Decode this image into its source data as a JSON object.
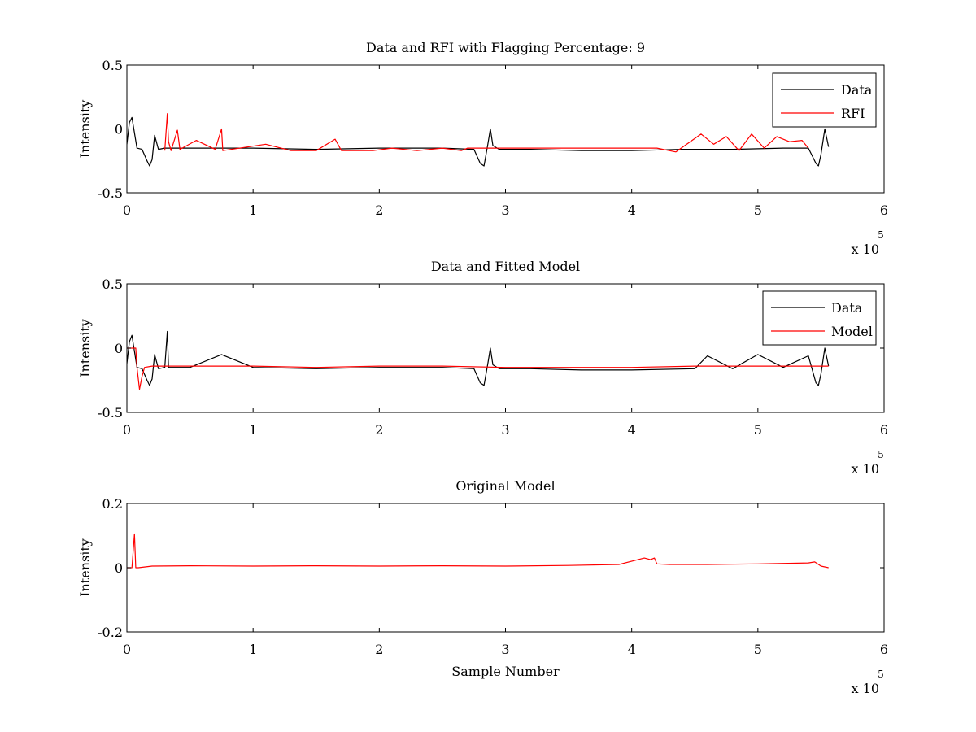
{
  "figure": {
    "background": "#ffffff"
  },
  "chart_data": [
    {
      "type": "line",
      "title": "Data and RFI with Flagging Percentage: 9",
      "xlabel": "",
      "ylabel": "Intensity",
      "xlim": [
        0,
        6
      ],
      "ylim": [
        -0.5,
        0.5
      ],
      "xticks": [
        "0",
        "1",
        "2",
        "3",
        "4",
        "5",
        "6"
      ],
      "xtick_values": [
        0,
        1,
        2,
        3,
        4,
        5,
        6
      ],
      "yticks": [
        "-0.5",
        "0",
        "0.5"
      ],
      "ytick_values": [
        -0.5,
        0,
        0.5
      ],
      "x_multiplier": {
        "base": "x 10",
        "exponent": "5"
      },
      "legend": {
        "placement": "top-right",
        "entries": [
          {
            "label": "Data",
            "color": "#000000"
          },
          {
            "label": "RFI",
            "color": "#ff0000"
          }
        ]
      },
      "series": [
        {
          "name": "Data",
          "color": "#000000",
          "x": [
            0,
            0.02,
            0.04,
            0.08,
            0.12,
            0.16,
            0.18,
            0.2,
            0.22,
            0.25,
            0.3,
            0.5,
            1.0,
            1.5,
            2.0,
            2.5,
            2.75,
            2.8,
            2.83,
            2.86,
            2.88,
            2.9,
            2.95,
            3.2,
            3.6,
            4.0,
            4.4,
            4.8,
            5.2,
            5.4,
            5.46,
            5.48,
            5.5,
            5.53,
            5.56
          ],
          "y": [
            -0.12,
            0.05,
            0.09,
            -0.15,
            -0.16,
            -0.25,
            -0.29,
            -0.24,
            -0.05,
            -0.16,
            -0.15,
            -0.15,
            -0.15,
            -0.16,
            -0.15,
            -0.15,
            -0.16,
            -0.27,
            -0.29,
            -0.12,
            0.0,
            -0.13,
            -0.16,
            -0.16,
            -0.17,
            -0.17,
            -0.16,
            -0.16,
            -0.15,
            -0.15,
            -0.27,
            -0.29,
            -0.2,
            0.0,
            -0.14
          ]
        },
        {
          "name": "RFI",
          "color": "#ff0000",
          "x": [
            0.3,
            0.32,
            0.33,
            0.35,
            0.4,
            0.42,
            0.55,
            0.7,
            0.75,
            0.76,
            1.1,
            1.3,
            1.5,
            1.65,
            1.7,
            1.95,
            2.1,
            2.3,
            2.5,
            2.65,
            2.7,
            4.2,
            4.35,
            4.55,
            4.65,
            4.75,
            4.85,
            4.95,
            5.05,
            5.15,
            5.25,
            5.35,
            5.4
          ],
          "y": [
            -0.17,
            0.12,
            -0.1,
            -0.17,
            -0.01,
            -0.16,
            -0.09,
            -0.16,
            0.0,
            -0.17,
            -0.12,
            -0.17,
            -0.17,
            -0.08,
            -0.17,
            -0.17,
            -0.15,
            -0.17,
            -0.15,
            -0.17,
            -0.15,
            -0.15,
            -0.18,
            -0.04,
            -0.12,
            -0.06,
            -0.17,
            -0.04,
            -0.15,
            -0.06,
            -0.1,
            -0.09,
            -0.15
          ]
        }
      ]
    },
    {
      "type": "line",
      "title": "Data and Fitted Model",
      "xlabel": "",
      "ylabel": "Intensity",
      "xlim": [
        0,
        6
      ],
      "ylim": [
        -0.5,
        0.5
      ],
      "xticks": [
        "0",
        "1",
        "2",
        "3",
        "4",
        "5",
        "6"
      ],
      "xtick_values": [
        0,
        1,
        2,
        3,
        4,
        5,
        6
      ],
      "yticks": [
        "-0.5",
        "0",
        "0.5"
      ],
      "ytick_values": [
        -0.5,
        0,
        0.5
      ],
      "x_multiplier": {
        "base": "x 10",
        "exponent": "5"
      },
      "legend": {
        "placement": "top-right",
        "entries": [
          {
            "label": "Data",
            "color": "#000000"
          },
          {
            "label": "Model",
            "color": "#ff0000"
          }
        ]
      },
      "series": [
        {
          "name": "Data",
          "color": "#000000",
          "x": [
            0,
            0.02,
            0.04,
            0.08,
            0.12,
            0.16,
            0.18,
            0.2,
            0.22,
            0.25,
            0.3,
            0.32,
            0.33,
            0.5,
            0.75,
            1.0,
            1.5,
            2.0,
            2.5,
            2.75,
            2.8,
            2.83,
            2.86,
            2.88,
            2.9,
            2.95,
            3.2,
            3.6,
            4.0,
            4.5,
            4.6,
            4.8,
            5.0,
            5.2,
            5.4,
            5.46,
            5.48,
            5.5,
            5.53,
            5.56
          ],
          "y": [
            -0.12,
            0.05,
            0.1,
            -0.15,
            -0.16,
            -0.25,
            -0.29,
            -0.24,
            -0.05,
            -0.16,
            -0.15,
            0.13,
            -0.15,
            -0.15,
            -0.05,
            -0.15,
            -0.16,
            -0.15,
            -0.15,
            -0.16,
            -0.27,
            -0.29,
            -0.12,
            0.0,
            -0.13,
            -0.16,
            -0.16,
            -0.17,
            -0.17,
            -0.16,
            -0.06,
            -0.16,
            -0.05,
            -0.15,
            -0.06,
            -0.27,
            -0.29,
            -0.2,
            0.0,
            -0.14
          ]
        },
        {
          "name": "Model",
          "color": "#ff0000",
          "x": [
            0,
            0.02,
            0.05,
            0.07,
            0.08,
            0.1,
            0.12,
            0.14,
            0.2,
            0.5,
            1.0,
            1.5,
            2.0,
            2.5,
            3.0,
            3.5,
            4.0,
            4.5,
            5.0,
            5.5,
            5.56
          ],
          "y": [
            0.0,
            0.0,
            0.0,
            0.0,
            -0.15,
            -0.32,
            -0.22,
            -0.15,
            -0.14,
            -0.14,
            -0.14,
            -0.15,
            -0.14,
            -0.14,
            -0.15,
            -0.15,
            -0.15,
            -0.14,
            -0.14,
            -0.14,
            -0.14
          ]
        }
      ]
    },
    {
      "type": "line",
      "title": "Original Model",
      "xlabel": "Sample Number",
      "ylabel": "Intensity",
      "xlim": [
        0,
        6
      ],
      "ylim": [
        -0.2,
        0.2
      ],
      "xticks": [
        "0",
        "1",
        "2",
        "3",
        "4",
        "5",
        "6"
      ],
      "xtick_values": [
        0,
        1,
        2,
        3,
        4,
        5,
        6
      ],
      "yticks": [
        "-0.2",
        "0",
        "0.2"
      ],
      "ytick_values": [
        -0.2,
        0,
        0.2
      ],
      "x_multiplier": {
        "base": "x 10",
        "exponent": "5"
      },
      "legend": null,
      "series": [
        {
          "name": "Model",
          "color": "#ff0000",
          "x": [
            0,
            0.04,
            0.06,
            0.07,
            0.09,
            0.2,
            0.5,
            1.0,
            1.5,
            2.0,
            2.5,
            3.0,
            3.5,
            3.9,
            4.1,
            4.15,
            4.18,
            4.2,
            4.3,
            4.6,
            5.0,
            5.4,
            5.45,
            5.5,
            5.56
          ],
          "y": [
            0.0,
            0.0,
            0.105,
            0.0,
            0.0,
            0.005,
            0.006,
            0.005,
            0.006,
            0.005,
            0.006,
            0.005,
            0.007,
            0.01,
            0.03,
            0.025,
            0.03,
            0.012,
            0.01,
            0.01,
            0.012,
            0.015,
            0.018,
            0.005,
            0.0
          ]
        }
      ]
    }
  ]
}
